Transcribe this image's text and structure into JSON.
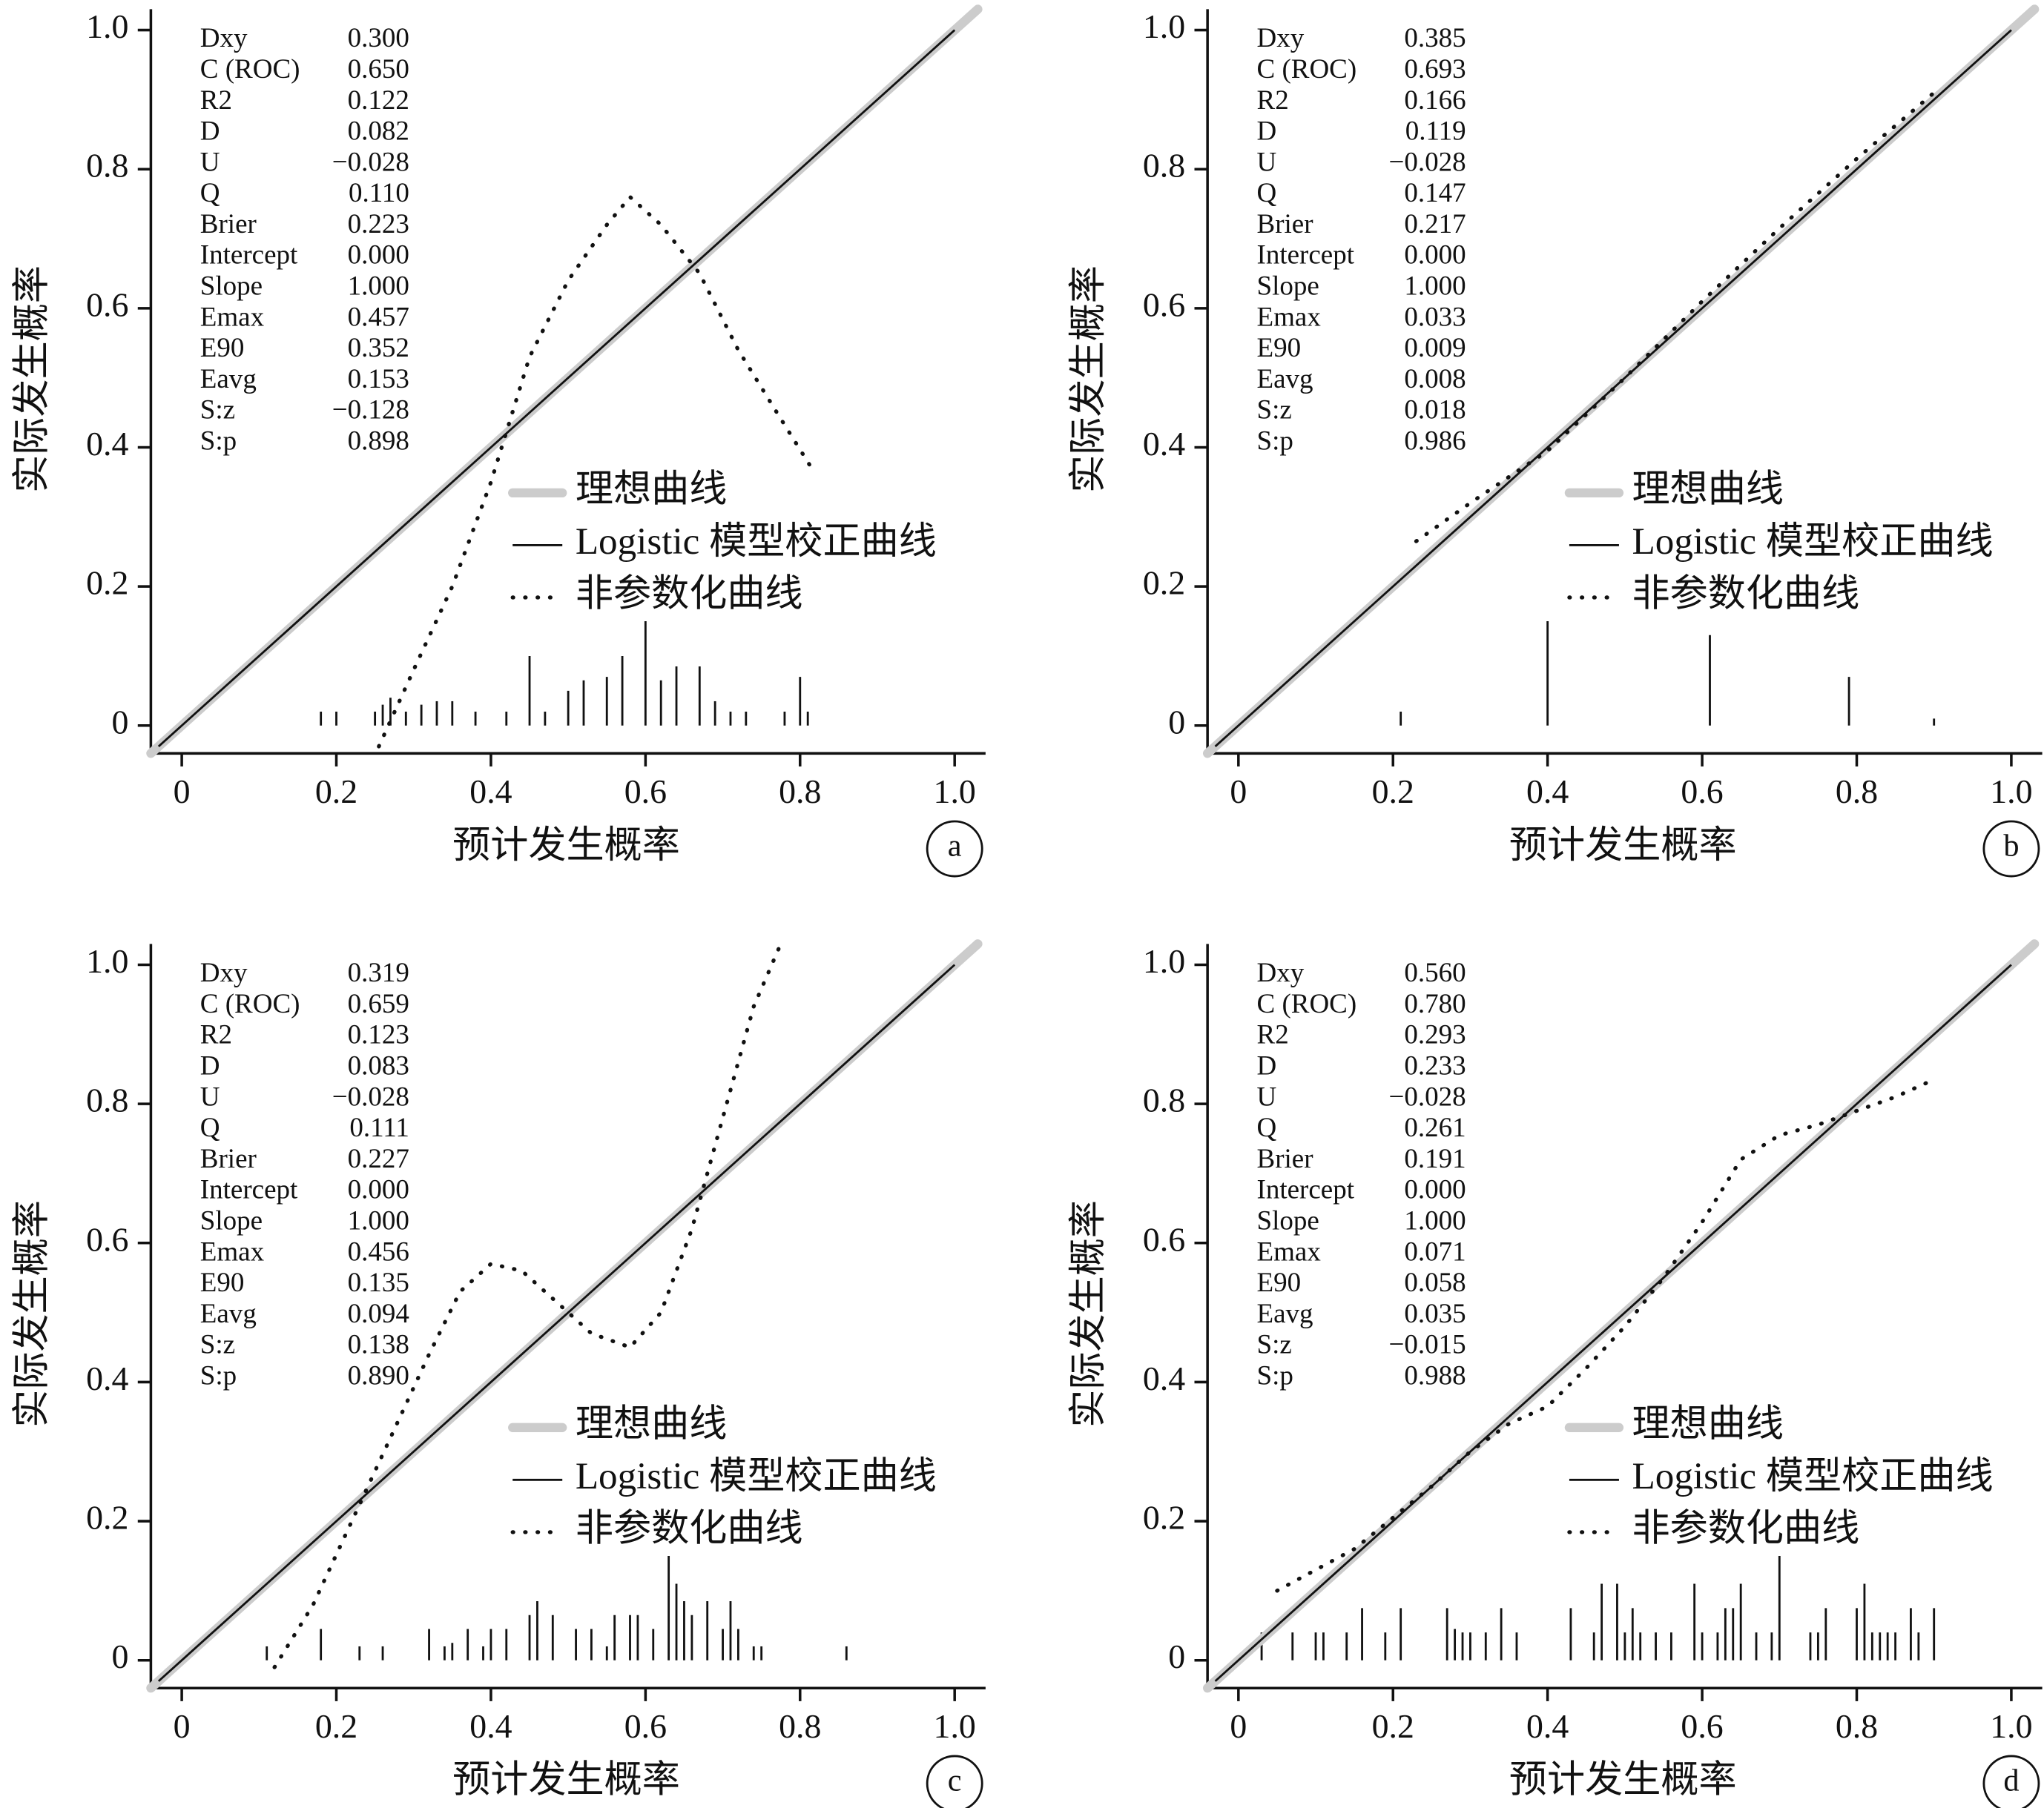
{
  "chart_data": [
    {
      "type": "line",
      "panel_label": "a",
      "x_label": "预计发生概率",
      "y_label": "实际发生概率",
      "xlim": [
        -0.04,
        1.04
      ],
      "ylim": [
        -0.04,
        1.03
      ],
      "xticks": [
        0,
        0.2,
        0.4,
        0.6,
        0.8,
        {
          "value": 1,
          "label": "1.0"
        }
      ],
      "yticks": [
        0,
        0.2,
        0.4,
        0.6,
        0.8,
        {
          "value": 1,
          "label": "1.0"
        }
      ],
      "series": [
        {
          "name": "理想曲线",
          "color": "#cccccc",
          "style": "thick",
          "x": [
            -0.04,
            1.03
          ],
          "values": [
            -0.04,
            1.03
          ]
        },
        {
          "name": "Logistic 模型校正曲线",
          "color": "#111111",
          "style": "solid",
          "x": [
            -0.03,
            1
          ],
          "values": [
            -0.03,
            1
          ]
        },
        {
          "name": "非参数化曲线",
          "color": "#111111",
          "style": "dotted",
          "x": [
            0.255,
            0.3,
            0.35,
            0.4,
            0.45,
            0.5,
            0.55,
            0.58,
            0.62,
            0.67,
            0.72,
            0.77,
            0.815
          ],
          "values": [
            -0.03,
            0.08,
            0.2,
            0.35,
            0.53,
            0.64,
            0.72,
            0.76,
            0.72,
            0.65,
            0.54,
            0.45,
            0.37
          ]
        }
      ],
      "rug": {
        "x": [
          0.18,
          0.2,
          0.25,
          0.26,
          0.27,
          0.29,
          0.31,
          0.33,
          0.35,
          0.38,
          0.42,
          0.45,
          0.47,
          0.5,
          0.52,
          0.55,
          0.57,
          0.6,
          0.62,
          0.64,
          0.67,
          0.69,
          0.71,
          0.73,
          0.78,
          0.8,
          0.81
        ],
        "values": [
          0.02,
          0.02,
          0.02,
          0.03,
          0.04,
          0.02,
          0.03,
          0.035,
          0.035,
          0.02,
          0.02,
          0.1,
          0.02,
          0.05,
          0.065,
          0.07,
          0.1,
          0.15,
          0.065,
          0.085,
          0.085,
          0.035,
          0.02,
          0.02,
          0.02,
          0.07,
          0.02
        ]
      },
      "stats": {
        "names": [
          "Dxy",
          "C (ROC)",
          "R2",
          "D",
          "U",
          "Q",
          "Brier",
          "Intercept",
          "Slope",
          "Emax",
          "E90",
          "Eavg",
          "S:z",
          "S:p"
        ],
        "values": [
          "0.300",
          "0.650",
          "0.122",
          "0.082",
          "−0.028",
          "0.110",
          "0.223",
          "0.000",
          "1.000",
          "0.457",
          "0.352",
          "0.153",
          "−0.128",
          "0.898"
        ]
      }
    },
    {
      "type": "line",
      "panel_label": "b",
      "x_label": "预计发生概率",
      "y_label": "实际发生概率",
      "xlim": [
        -0.04,
        1.04
      ],
      "ylim": [
        -0.04,
        1.03
      ],
      "xticks": [
        0,
        0.2,
        0.4,
        0.6,
        0.8,
        {
          "value": 1,
          "label": "1.0"
        }
      ],
      "yticks": [
        0,
        0.2,
        0.4,
        0.6,
        0.8,
        {
          "value": 1,
          "label": "1.0"
        }
      ],
      "series": [
        {
          "name": "理想曲线",
          "color": "#cccccc",
          "style": "thick",
          "x": [
            -0.04,
            1.03
          ],
          "values": [
            -0.04,
            1.03
          ]
        },
        {
          "name": "Logistic 模型校正曲线",
          "color": "#111111",
          "style": "solid",
          "x": [
            -0.03,
            1
          ],
          "values": [
            -0.03,
            1
          ]
        },
        {
          "name": "非参数化曲线",
          "color": "#111111",
          "style": "dotted",
          "x": [
            0.23,
            0.3,
            0.4,
            0.5,
            0.6,
            0.7,
            0.8,
            0.9
          ],
          "values": [
            0.265,
            0.32,
            0.395,
            0.5,
            0.61,
            0.715,
            0.815,
            0.91
          ]
        }
      ],
      "rug": {
        "x": [
          0.21,
          0.4,
          0.61,
          0.79,
          0.9
        ],
        "values": [
          0.02,
          0.15,
          0.13,
          0.07,
          0.01
        ]
      },
      "stats": {
        "names": [
          "Dxy",
          "C (ROC)",
          "R2",
          "D",
          "U",
          "Q",
          "Brier",
          "Intercept",
          "Slope",
          "Emax",
          "E90",
          "Eavg",
          "S:z",
          "S:p"
        ],
        "values": [
          "0.385",
          "0.693",
          "0.166",
          "0.119",
          "−0.028",
          "0.147",
          "0.217",
          "0.000",
          "1.000",
          "0.033",
          "0.009",
          "0.008",
          "0.018",
          "0.986"
        ]
      }
    },
    {
      "type": "line",
      "panel_label": "c",
      "x_label": "预计发生概率",
      "y_label": "实际发生概率",
      "xlim": [
        -0.04,
        1.04
      ],
      "ylim": [
        -0.04,
        1.03
      ],
      "xticks": [
        0,
        0.2,
        0.4,
        0.6,
        0.8,
        {
          "value": 1,
          "label": "1.0"
        }
      ],
      "yticks": [
        0,
        0.2,
        0.4,
        0.6,
        0.8,
        {
          "value": 1,
          "label": "1.0"
        }
      ],
      "series": [
        {
          "name": "理想曲线",
          "color": "#cccccc",
          "style": "thick",
          "x": [
            -0.04,
            1.03
          ],
          "values": [
            -0.04,
            1.03
          ]
        },
        {
          "name": "Logistic 模型校正曲线",
          "color": "#111111",
          "style": "solid",
          "x": [
            -0.03,
            1
          ],
          "values": [
            -0.03,
            1
          ]
        },
        {
          "name": "非参数化曲线",
          "color": "#111111",
          "style": "dotted",
          "x": [
            0.12,
            0.17,
            0.22,
            0.27,
            0.32,
            0.36,
            0.4,
            0.44,
            0.48,
            0.53,
            0.58,
            0.62,
            0.66,
            0.7,
            0.74,
            0.775
          ],
          "values": [
            -0.01,
            0.08,
            0.2,
            0.32,
            0.44,
            0.53,
            0.57,
            0.56,
            0.52,
            0.47,
            0.45,
            0.5,
            0.62,
            0.78,
            0.94,
            1.03
          ]
        }
      ],
      "rug": {
        "x": [
          0.11,
          0.18,
          0.23,
          0.26,
          0.32,
          0.34,
          0.35,
          0.37,
          0.39,
          0.4,
          0.42,
          0.45,
          0.46,
          0.48,
          0.51,
          0.53,
          0.55,
          0.56,
          0.58,
          0.59,
          0.61,
          0.63,
          0.64,
          0.65,
          0.66,
          0.68,
          0.7,
          0.71,
          0.72,
          0.74,
          0.75,
          0.86
        ],
        "values": [
          0.02,
          0.045,
          0.02,
          0.02,
          0.045,
          0.02,
          0.025,
          0.045,
          0.02,
          0.045,
          0.045,
          0.065,
          0.085,
          0.065,
          0.045,
          0.045,
          0.02,
          0.065,
          0.065,
          0.065,
          0.045,
          0.15,
          0.11,
          0.085,
          0.065,
          0.085,
          0.045,
          0.085,
          0.045,
          0.02,
          0.02,
          0.02
        ]
      },
      "stats": {
        "names": [
          "Dxy",
          "C (ROC)",
          "R2",
          "D",
          "U",
          "Q",
          "Brier",
          "Intercept",
          "Slope",
          "Emax",
          "E90",
          "Eavg",
          "S:z",
          "S:p"
        ],
        "values": [
          "0.319",
          "0.659",
          "0.123",
          "0.083",
          "−0.028",
          "0.111",
          "0.227",
          "0.000",
          "1.000",
          "0.456",
          "0.135",
          "0.094",
          "0.138",
          "0.890"
        ]
      }
    },
    {
      "type": "line",
      "panel_label": "d",
      "x_label": "预计发生概率",
      "y_label": "实际发生概率",
      "xlim": [
        -0.04,
        1.04
      ],
      "ylim": [
        -0.04,
        1.03
      ],
      "xticks": [
        0,
        0.2,
        0.4,
        0.6,
        0.8,
        {
          "value": 1,
          "label": "1.0"
        }
      ],
      "yticks": [
        0,
        0.2,
        0.4,
        0.6,
        0.8,
        {
          "value": 1,
          "label": "1.0"
        }
      ],
      "series": [
        {
          "name": "理想曲线",
          "color": "#cccccc",
          "style": "thick",
          "x": [
            -0.04,
            1.03
          ],
          "values": [
            -0.04,
            1.03
          ]
        },
        {
          "name": "Logistic 模型校正曲线",
          "color": "#111111",
          "style": "solid",
          "x": [
            -0.03,
            1
          ],
          "values": [
            -0.03,
            1
          ]
        },
        {
          "name": "非参数化曲线",
          "color": "#111111",
          "style": "dotted",
          "x": [
            0.05,
            0.1,
            0.15,
            0.2,
            0.25,
            0.3,
            0.35,
            0.4,
            0.45,
            0.5,
            0.55,
            0.6,
            0.65,
            0.7,
            0.75,
            0.8,
            0.85,
            0.9
          ],
          "values": [
            0.1,
            0.13,
            0.16,
            0.205,
            0.25,
            0.3,
            0.34,
            0.365,
            0.42,
            0.48,
            0.55,
            0.63,
            0.72,
            0.755,
            0.77,
            0.79,
            0.81,
            0.835
          ]
        }
      ],
      "rug": {
        "x": [
          0.03,
          0.07,
          0.1,
          0.11,
          0.14,
          0.16,
          0.19,
          0.21,
          0.27,
          0.28,
          0.29,
          0.3,
          0.32,
          0.34,
          0.36,
          0.43,
          0.46,
          0.47,
          0.49,
          0.5,
          0.51,
          0.52,
          0.54,
          0.56,
          0.59,
          0.6,
          0.62,
          0.63,
          0.64,
          0.65,
          0.67,
          0.69,
          0.7,
          0.74,
          0.75,
          0.76,
          0.8,
          0.81,
          0.82,
          0.83,
          0.84,
          0.85,
          0.87,
          0.88,
          0.9
        ],
        "values": [
          0.04,
          0.04,
          0.04,
          0.04,
          0.04,
          0.075,
          0.04,
          0.075,
          0.075,
          0.045,
          0.04,
          0.04,
          0.04,
          0.075,
          0.04,
          0.075,
          0.04,
          0.11,
          0.11,
          0.04,
          0.075,
          0.04,
          0.04,
          0.04,
          0.11,
          0.04,
          0.04,
          0.075,
          0.075,
          0.11,
          0.04,
          0.04,
          0.15,
          0.04,
          0.04,
          0.075,
          0.075,
          0.11,
          0.04,
          0.04,
          0.04,
          0.04,
          0.075,
          0.04,
          0.075
        ]
      },
      "stats": {
        "names": [
          "Dxy",
          "C (ROC)",
          "R2",
          "D",
          "U",
          "Q",
          "Brier",
          "Intercept",
          "Slope",
          "Emax",
          "E90",
          "Eavg",
          "S:z",
          "S:p"
        ],
        "values": [
          "0.560",
          "0.780",
          "0.293",
          "0.233",
          "−0.028",
          "0.261",
          "0.191",
          "0.000",
          "1.000",
          "0.071",
          "0.058",
          "0.035",
          "−0.015",
          "0.988"
        ]
      }
    }
  ]
}
